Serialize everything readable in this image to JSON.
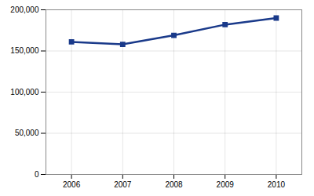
{
  "chart_data": {
    "type": "line",
    "x": [
      2006,
      2007,
      2008,
      2009,
      2010
    ],
    "values": [
      161000,
      158000,
      169000,
      182000,
      190000
    ],
    "color": "#1a3a8a",
    "marker": "square",
    "xlim": [
      2005.5,
      2010.5
    ],
    "xticks": [
      2006,
      2007,
      2008,
      2009,
      2010
    ],
    "ylim": [
      0,
      200000
    ],
    "yticks": [
      0,
      {
        "value": 50000,
        "label": "50,000"
      },
      {
        "value": 100000,
        "label": "100,000"
      },
      {
        "value": 150000,
        "label": "150,000"
      },
      {
        "value": 200000,
        "label": "200,000"
      }
    ],
    "grid": true
  }
}
